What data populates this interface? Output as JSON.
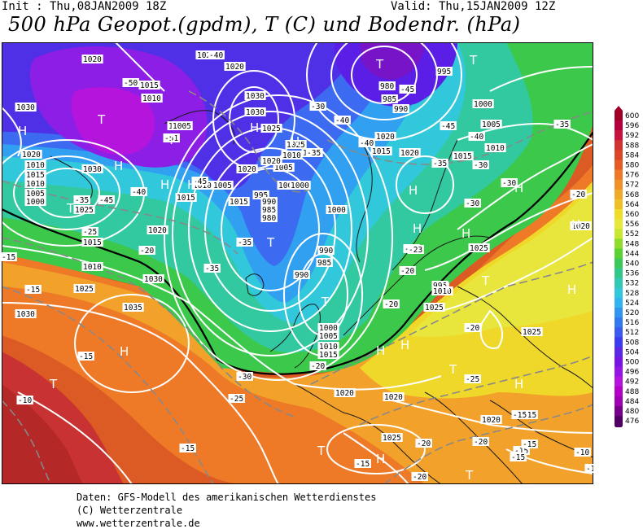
{
  "header": {
    "init": "Init : Thu,08JAN2009 18Z",
    "valid": "Valid: Thu,15JAN2009 12Z",
    "title": "500 hPa Geopot.(gpdm), T (C) und Bodendr. (hPa)"
  },
  "credits": {
    "line1": "Daten: GFS-Modell des amerikanischen Wetterdienstes",
    "line2": "(C) Wetterzentrale",
    "line3": "www.wetterzentrale.de"
  },
  "legend": {
    "levels": [
      "600",
      "596",
      "592",
      "588",
      "584",
      "580",
      "576",
      "572",
      "568",
      "564",
      "560",
      "556",
      "552",
      "548",
      "544",
      "540",
      "536",
      "532",
      "528",
      "524",
      "520",
      "516",
      "512",
      "508",
      "504",
      "500",
      "496",
      "492",
      "488",
      "484",
      "480",
      "476"
    ],
    "colors": [
      "#a00028",
      "#b4003c",
      "#c8143c",
      "#d23232",
      "#dc4628",
      "#e65a23",
      "#ee7828",
      "#f09028",
      "#f0aa28",
      "#f0c028",
      "#f0dc2a",
      "#e8e83c",
      "#c8e632",
      "#90dc2a",
      "#5ad232",
      "#3cc85a",
      "#32c88c",
      "#32c8b4",
      "#32c8dc",
      "#32b4f0",
      "#3296f0",
      "#3278f0",
      "#3c5af0",
      "#3c3cf0",
      "#5a28e6",
      "#7814e6",
      "#9614e6",
      "#b414dc",
      "#b400c8",
      "#a000b4",
      "#78008c",
      "#500064"
    ]
  },
  "map": {
    "pressure_labels": [
      {
        "t": "1020"
      },
      {
        "t": "1015"
      },
      {
        "t": "1010"
      },
      {
        "t": "1005"
      },
      {
        "t": "1030"
      },
      {
        "t": "1025"
      },
      {
        "t": "1020"
      },
      {
        "t": "1030"
      },
      {
        "t": "1005"
      },
      {
        "t": "980"
      },
      {
        "t": "985"
      },
      {
        "t": "990"
      },
      {
        "t": "995"
      },
      {
        "t": "1000"
      },
      {
        "t": "1005"
      },
      {
        "t": "1010"
      },
      {
        "t": "1015"
      },
      {
        "t": "1020"
      },
      {
        "t": "1015"
      },
      {
        "t": "1010"
      },
      {
        "t": "1005"
      },
      {
        "t": "1000"
      },
      {
        "t": "1020"
      },
      {
        "t": "1010"
      },
      {
        "t": "1015"
      },
      {
        "t": "1010"
      },
      {
        "t": "1005"
      },
      {
        "t": "1000"
      },
      {
        "t": "995"
      },
      {
        "t": "990"
      },
      {
        "t": "985"
      },
      {
        "t": "980"
      },
      {
        "t": "1020"
      },
      {
        "t": "1030"
      },
      {
        "t": "1025"
      },
      {
        "t": "1035"
      },
      {
        "t": "1030"
      },
      {
        "t": "1025"
      },
      {
        "t": "990"
      },
      {
        "t": "985"
      },
      {
        "t": "990"
      },
      {
        "t": "995"
      },
      {
        "t": "1000"
      },
      {
        "t": "1005"
      },
      {
        "t": "1010"
      },
      {
        "t": "1015"
      },
      {
        "t": "1020"
      },
      {
        "t": "1025"
      },
      {
        "t": "1020"
      },
      {
        "t": "1020"
      },
      {
        "t": "1025"
      },
      {
        "t": "1020"
      },
      {
        "t": "1030"
      },
      {
        "t": "1015"
      },
      {
        "t": "1020"
      },
      {
        "t": "1025"
      },
      {
        "t": "1020"
      },
      {
        "t": "1000"
      },
      {
        "t": "1005"
      },
      {
        "t": "1010"
      },
      {
        "t": "1015"
      },
      {
        "t": "1025"
      },
      {
        "t": "1020"
      },
      {
        "t": "1020"
      },
      {
        "t": "1030"
      },
      {
        "t": "1025"
      },
      {
        "t": "1015"
      },
      {
        "t": "1010"
      },
      {
        "t": "1000"
      },
      {
        "t": "1010"
      },
      {
        "t": "1025"
      }
    ],
    "temp_labels": [
      {
        "t": "-50"
      },
      {
        "t": "-51"
      },
      {
        "t": "-40"
      },
      {
        "t": "-45"
      },
      {
        "t": "-45"
      },
      {
        "t": "-40"
      },
      {
        "t": "-40"
      },
      {
        "t": "-40"
      },
      {
        "t": "-35"
      },
      {
        "t": "-35"
      },
      {
        "t": "-30"
      },
      {
        "t": "-35"
      },
      {
        "t": "-30"
      },
      {
        "t": "-40"
      },
      {
        "t": "-45"
      },
      {
        "t": "-45"
      },
      {
        "t": "-35"
      },
      {
        "t": "-25"
      },
      {
        "t": "-20"
      },
      {
        "t": "-15"
      },
      {
        "t": "-35"
      },
      {
        "t": "-15"
      },
      {
        "t": "-10"
      },
      {
        "t": "-15"
      },
      {
        "t": "-30"
      },
      {
        "t": "-25"
      },
      {
        "t": "-20"
      },
      {
        "t": "-20"
      },
      {
        "t": "-25"
      },
      {
        "t": "-25"
      },
      {
        "t": "-20"
      },
      {
        "t": "-20"
      },
      {
        "t": "-15"
      },
      {
        "t": "-15"
      },
      {
        "t": "-20"
      },
      {
        "t": "-20"
      },
      {
        "t": "-15"
      },
      {
        "t": "-15"
      },
      {
        "t": "-15"
      },
      {
        "t": "-10"
      },
      {
        "t": "-15"
      },
      {
        "t": "-10"
      },
      {
        "t": "-20"
      },
      {
        "t": "-35"
      },
      {
        "t": "-30"
      },
      {
        "t": "-30"
      },
      {
        "t": "-23"
      },
      {
        "t": "-20"
      },
      {
        "t": "-15"
      }
    ],
    "centers": [
      {
        "t": "H"
      },
      {
        "t": "T"
      },
      {
        "t": "H"
      },
      {
        "t": "T"
      },
      {
        "t": "H"
      },
      {
        "t": "T"
      },
      {
        "t": "H"
      },
      {
        "t": "T"
      },
      {
        "t": "H"
      },
      {
        "t": "H"
      },
      {
        "t": "T"
      },
      {
        "t": "T"
      },
      {
        "t": "H"
      },
      {
        "t": "T"
      },
      {
        "t": "H"
      },
      {
        "t": "H"
      },
      {
        "t": "H"
      },
      {
        "t": "T"
      },
      {
        "t": "H"
      },
      {
        "t": "H"
      },
      {
        "t": "H"
      },
      {
        "t": "T"
      },
      {
        "t": "T"
      },
      {
        "t": "H"
      },
      {
        "t": "H"
      },
      {
        "t": "H"
      },
      {
        "t": "T"
      },
      {
        "t": "H"
      },
      {
        "t": "H"
      },
      {
        "t": "T"
      }
    ]
  }
}
